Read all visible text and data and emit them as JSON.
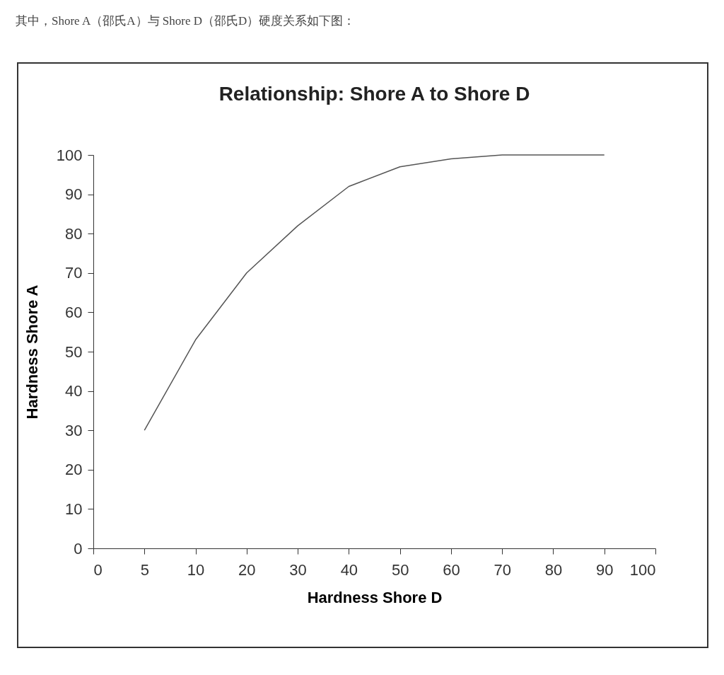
{
  "chart_data": {
    "type": "line",
    "title": "Relationship: Shore A to Shore D",
    "xlabel": "Hardness Shore D",
    "ylabel": "Hardness Shore A",
    "annotations": [
      "其中，Shore A（邵氏A）与 Shore D（邵氏D）硬度关系如下图："
    ],
    "categories": [
      "0",
      "5",
      "10",
      "20",
      "30",
      "40",
      "50",
      "60",
      "70",
      "80",
      "90",
      "100"
    ],
    "series": [
      {
        "color": "#555555",
        "values": [
          null,
          30,
          53,
          70,
          82,
          92,
          97,
          99,
          100,
          100,
          100,
          null
        ]
      }
    ],
    "ylim": [
      0,
      100
    ],
    "yticks": [
      0,
      10,
      20,
      30,
      40,
      50,
      60,
      70,
      80,
      90,
      100
    ],
    "grid": false,
    "marker": "none",
    "line_style": "solid"
  }
}
